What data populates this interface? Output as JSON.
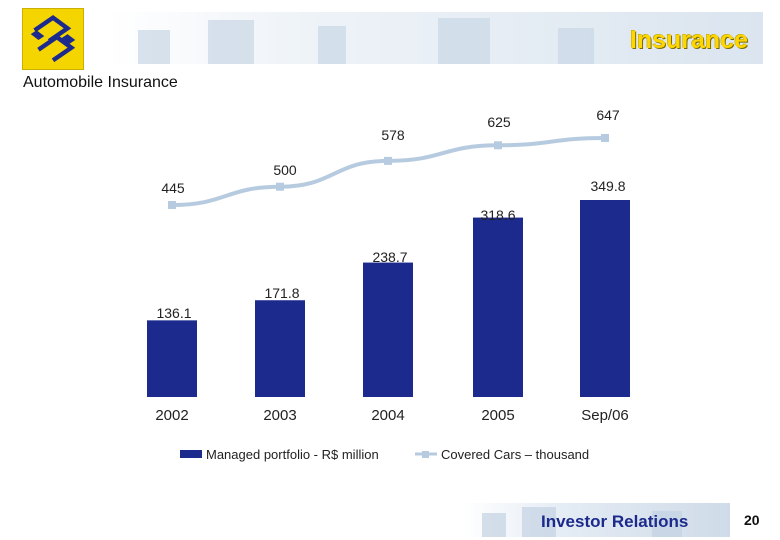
{
  "header": {
    "title": "Insurance",
    "brand_color": "#f4d500"
  },
  "subtitle": "Automobile Insurance",
  "footer": {
    "label": "Investor Relations",
    "page_number": "20"
  },
  "chart_data": {
    "type": "bar",
    "categories": [
      "2002",
      "2003",
      "2004",
      "2005",
      "Sep/06"
    ],
    "series": [
      {
        "name": "Managed portfolio - R$ million",
        "type": "bar",
        "values": [
          136.1,
          171.8,
          238.7,
          318.6,
          349.8
        ],
        "labels": [
          "136.1",
          "171.8",
          "238.7",
          "318.6",
          "349.8"
        ],
        "color": "#1b2a8c"
      },
      {
        "name": "Covered Cars – thousand",
        "type": "line",
        "values": [
          445,
          500,
          578,
          625,
          647
        ],
        "labels": [
          "445",
          "500",
          "578",
          "625",
          "647"
        ],
        "color": "#b7cbe0"
      }
    ],
    "legend_position": "bottom",
    "grid": false
  }
}
